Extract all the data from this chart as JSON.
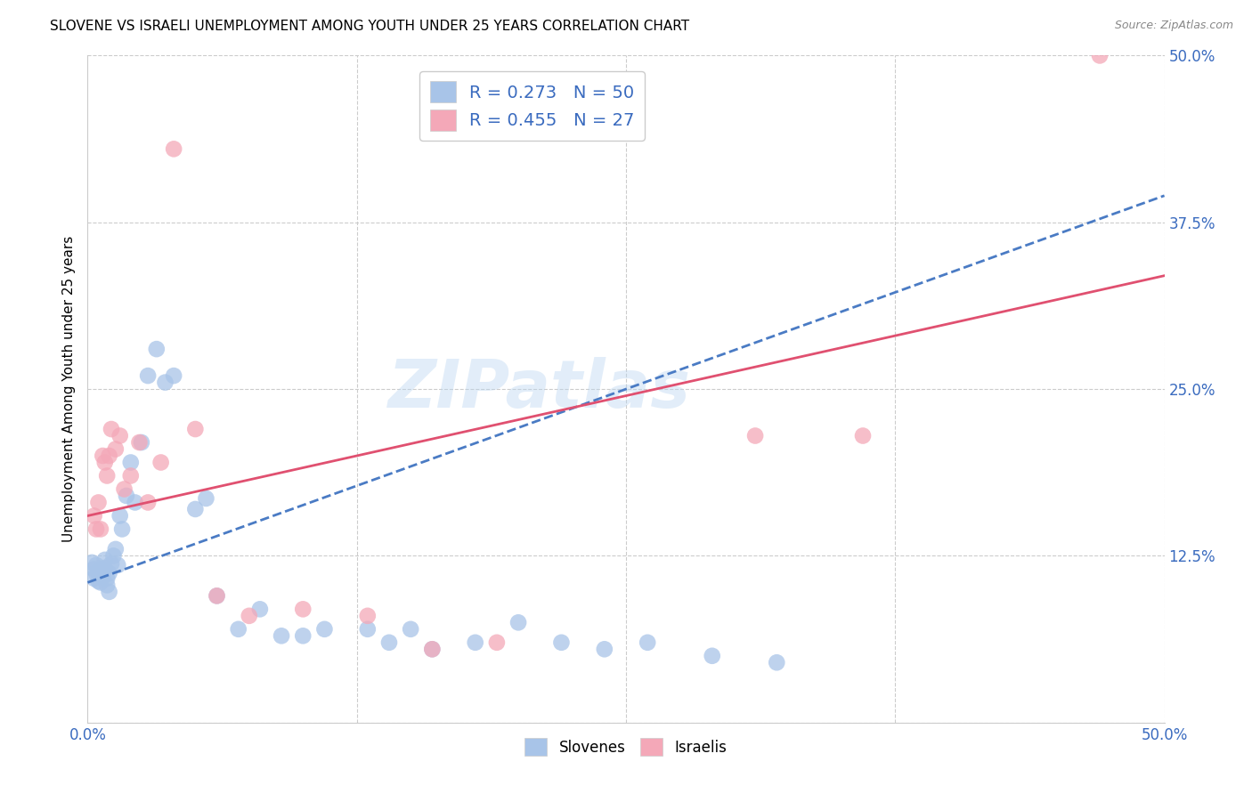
{
  "title": "SLOVENE VS ISRAELI UNEMPLOYMENT AMONG YOUTH UNDER 25 YEARS CORRELATION CHART",
  "source": "Source: ZipAtlas.com",
  "ylabel": "Unemployment Among Youth under 25 years",
  "xlim": [
    0.0,
    0.5
  ],
  "ylim": [
    0.0,
    0.5
  ],
  "xtick_labels": [
    "0.0%",
    "",
    "",
    "",
    "50.0%"
  ],
  "ytick_labels": [
    "",
    "12.5%",
    "25.0%",
    "37.5%",
    "50.0%"
  ],
  "slovene_color": "#a8c4e8",
  "israeli_color": "#f4a8b8",
  "slovene_R": 0.273,
  "slovene_N": 50,
  "israeli_R": 0.455,
  "israeli_N": 27,
  "slovene_line_color": "#4a7bc4",
  "slovene_line_style": "--",
  "israeli_line_color": "#e05070",
  "israeli_line_style": "-",
  "watermark": "ZIPatlas",
  "background_color": "#ffffff",
  "grid_color": "#cccccc",
  "slovene_x": [
    0.002,
    0.003,
    0.003,
    0.004,
    0.004,
    0.005,
    0.005,
    0.006,
    0.006,
    0.007,
    0.007,
    0.008,
    0.008,
    0.009,
    0.009,
    0.01,
    0.01,
    0.011,
    0.012,
    0.013,
    0.014,
    0.015,
    0.016,
    0.018,
    0.02,
    0.022,
    0.025,
    0.028,
    0.032,
    0.036,
    0.04,
    0.05,
    0.055,
    0.06,
    0.07,
    0.08,
    0.09,
    0.1,
    0.11,
    0.13,
    0.14,
    0.15,
    0.16,
    0.18,
    0.2,
    0.22,
    0.24,
    0.26,
    0.29,
    0.32
  ],
  "slovene_y": [
    0.12,
    0.115,
    0.108,
    0.118,
    0.112,
    0.113,
    0.106,
    0.11,
    0.105,
    0.115,
    0.109,
    0.122,
    0.116,
    0.108,
    0.103,
    0.112,
    0.098,
    0.119,
    0.125,
    0.13,
    0.118,
    0.155,
    0.145,
    0.17,
    0.195,
    0.165,
    0.21,
    0.26,
    0.28,
    0.255,
    0.26,
    0.16,
    0.168,
    0.095,
    0.07,
    0.085,
    0.065,
    0.065,
    0.07,
    0.07,
    0.06,
    0.07,
    0.055,
    0.06,
    0.075,
    0.06,
    0.055,
    0.06,
    0.05,
    0.045
  ],
  "israeli_x": [
    0.003,
    0.004,
    0.005,
    0.006,
    0.007,
    0.008,
    0.009,
    0.01,
    0.011,
    0.013,
    0.015,
    0.017,
    0.02,
    0.024,
    0.028,
    0.034,
    0.04,
    0.05,
    0.06,
    0.075,
    0.1,
    0.13,
    0.16,
    0.19,
    0.31,
    0.36,
    0.47
  ],
  "israeli_y": [
    0.155,
    0.145,
    0.165,
    0.145,
    0.2,
    0.195,
    0.185,
    0.2,
    0.22,
    0.205,
    0.215,
    0.175,
    0.185,
    0.21,
    0.165,
    0.195,
    0.43,
    0.22,
    0.095,
    0.08,
    0.085,
    0.08,
    0.055,
    0.06,
    0.215,
    0.215,
    0.5
  ],
  "slovene_line_x0": 0.0,
  "slovene_line_y0": 0.105,
  "slovene_line_x1": 0.5,
  "slovene_line_y1": 0.395,
  "israeli_line_x0": 0.0,
  "israeli_line_y0": 0.155,
  "israeli_line_x1": 0.5,
  "israeli_line_y1": 0.335
}
